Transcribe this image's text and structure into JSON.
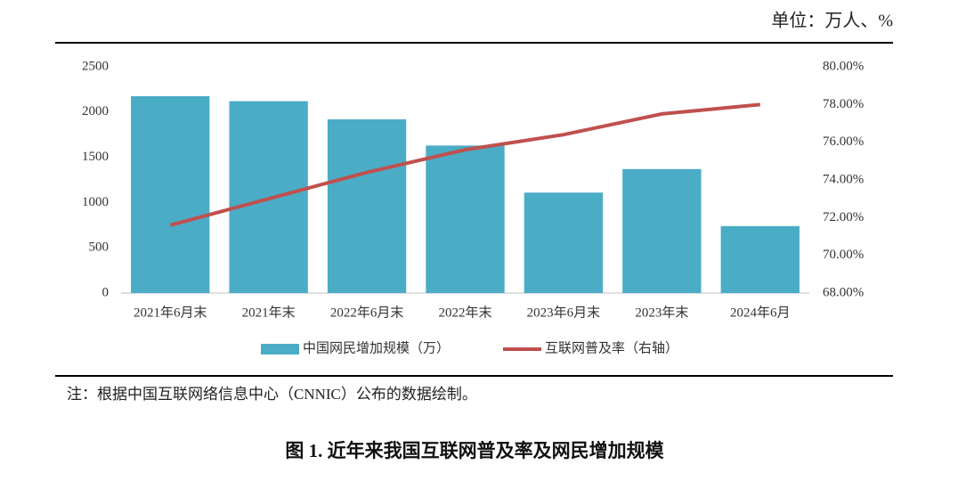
{
  "header": {
    "unit": "单位：万人、%"
  },
  "chart_data": {
    "type": "bar",
    "categories": [
      "2021年6月末",
      "2021年末",
      "2022年6月末",
      "2022年末",
      "2023年6月末",
      "2023年末",
      "2024年6月"
    ],
    "series": [
      {
        "name": "中国网民增加规模（万）",
        "type": "bar",
        "color": "#4bacc6",
        "values": [
          2175,
          2120,
          1920,
          1630,
          1110,
          1370,
          740
        ]
      },
      {
        "name": "互联网普及率（右轴）",
        "type": "line",
        "axis": "y2",
        "color": "#c0504d",
        "values": [
          71.6,
          73.0,
          74.4,
          75.6,
          76.4,
          77.5,
          78.0
        ]
      }
    ],
    "ylim": [
      0,
      2500
    ],
    "yticks": [
      0,
      500,
      1000,
      1500,
      2000,
      2500
    ],
    "y2lim": [
      68,
      80
    ],
    "y2ticks": [
      {
        "value": 68,
        "label": "68.00%"
      },
      {
        "value": 70,
        "label": "70.00%"
      },
      {
        "value": 72,
        "label": "72.00%"
      },
      {
        "value": 74,
        "label": "74.00%"
      },
      {
        "value": 76,
        "label": "76.00%"
      },
      {
        "value": 78,
        "label": "78.00%"
      },
      {
        "value": 80,
        "label": "80.00%"
      }
    ],
    "grid": false
  },
  "note": "注：根据中国互联网络信息中心（CNNIC）公布的数据绘制。",
  "caption": "图 1. 近年来我国互联网普及率及网民增加规模"
}
